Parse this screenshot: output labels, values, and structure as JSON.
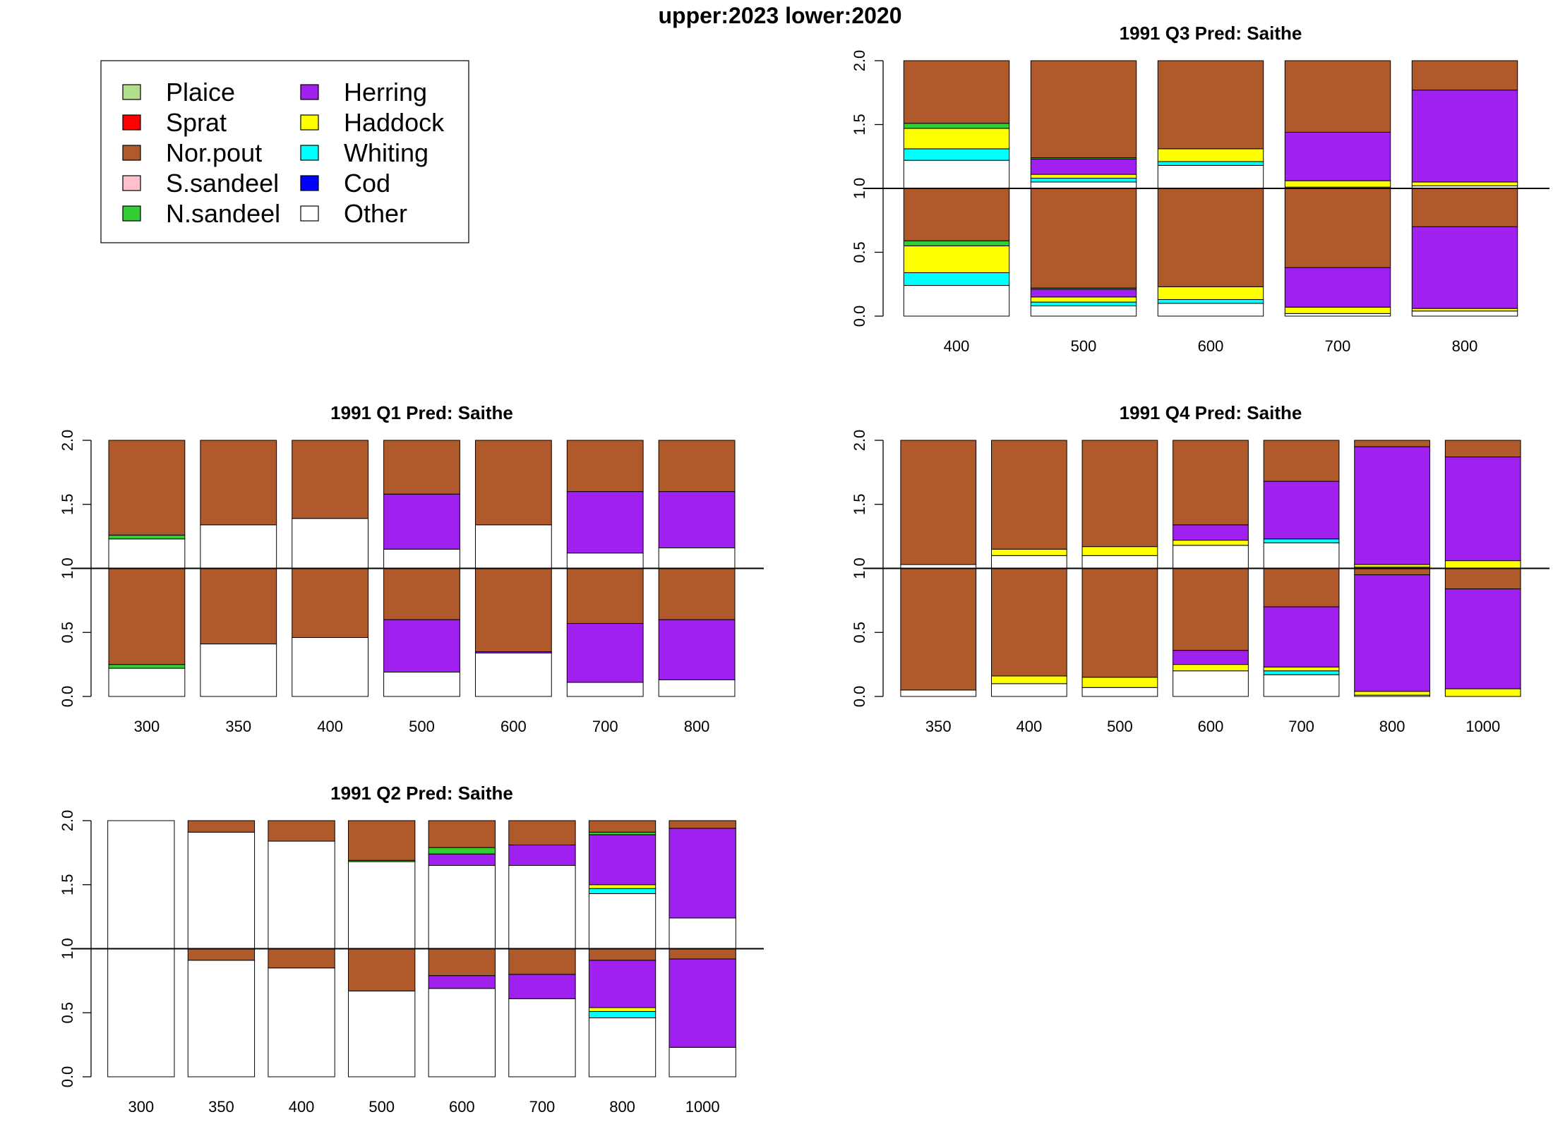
{
  "main_title": "upper:2023  lower:2020",
  "legend": {
    "placement": "top-left",
    "items": [
      {
        "label": "Plaice",
        "color": "#b2df8a"
      },
      {
        "label": "Sprat",
        "color": "#ff0000"
      },
      {
        "label": "Nor.pout",
        "color": "#b05a2c"
      },
      {
        "label": "S.sandeel",
        "color": "#ffc0cb"
      },
      {
        "label": "N.sandeel",
        "color": "#32cd32"
      },
      {
        "label": "Herring",
        "color": "#a020f0"
      },
      {
        "label": "Haddock",
        "color": "#ffff00"
      },
      {
        "label": "Whiting",
        "color": "#00ffff"
      },
      {
        "label": "Cod",
        "color": "#0000ff"
      },
      {
        "label": "Other",
        "color": "#ffffff"
      }
    ]
  },
  "chart_data": [
    {
      "type": "bar",
      "title": "1991 Q3  Pred: Saithe",
      "ylim": [
        0,
        2
      ],
      "yticks": [
        "0.0",
        "0.5",
        "1.0",
        "1.5",
        "2.0"
      ],
      "categories": [
        "400",
        "500",
        "600",
        "700",
        "800"
      ],
      "upper": [
        {
          "Other": 0.22,
          "Whiting": 0.09,
          "Haddock": 0.16,
          "N.sandeel": 0.04,
          "Nor.pout": 0.49
        },
        {
          "Other": 0.05,
          "Whiting": 0.03,
          "Haddock": 0.03,
          "N.sandeel": 0.01,
          "Herring": 0.12,
          "Nor.pout": 0.76
        },
        {
          "Other": 0.18,
          "Whiting": 0.03,
          "Haddock": 0.1,
          "Nor.pout": 0.69
        },
        {
          "Other": 0.01,
          "Haddock": 0.05,
          "Herring": 0.38,
          "Nor.pout": 0.56
        },
        {
          "Other": 0.02,
          "Haddock": 0.03,
          "Herring": 0.72,
          "Nor.pout": 0.23
        }
      ],
      "lower": [
        {
          "Other": 0.24,
          "Whiting": 0.1,
          "Haddock": 0.21,
          "N.sandeel": 0.04,
          "Nor.pout": 0.41
        },
        {
          "Other": 0.08,
          "Whiting": 0.03,
          "Haddock": 0.04,
          "N.sandeel": 0.01,
          "Herring": 0.06,
          "Nor.pout": 0.78
        },
        {
          "Other": 0.1,
          "Whiting": 0.03,
          "Haddock": 0.1,
          "Nor.pout": 0.77
        },
        {
          "Other": 0.02,
          "Haddock": 0.05,
          "Herring": 0.31,
          "Nor.pout": 0.62
        },
        {
          "Other": 0.04,
          "Haddock": 0.02,
          "Herring": 0.64,
          "Nor.pout": 0.3
        }
      ]
    },
    {
      "type": "bar",
      "title": "1991 Q1  Pred: Saithe",
      "ylim": [
        0,
        2
      ],
      "yticks": [
        "0.0",
        "0.5",
        "1.0",
        "1.5",
        "2.0"
      ],
      "categories": [
        "300",
        "350",
        "400",
        "500",
        "600",
        "700",
        "800"
      ],
      "upper": [
        {
          "Other": 0.23,
          "N.sandeel": 0.03,
          "Nor.pout": 0.74
        },
        {
          "Other": 0.34,
          "Nor.pout": 0.66
        },
        {
          "Other": 0.39,
          "Nor.pout": 0.61
        },
        {
          "Other": 0.15,
          "Herring": 0.43,
          "Nor.pout": 0.42
        },
        {
          "Other": 0.34,
          "Nor.pout": 0.66
        },
        {
          "Other": 0.12,
          "Herring": 0.48,
          "Nor.pout": 0.4
        },
        {
          "Other": 0.16,
          "Herring": 0.44,
          "Nor.pout": 0.4
        }
      ],
      "lower": [
        {
          "Other": 0.22,
          "N.sandeel": 0.03,
          "Nor.pout": 0.75
        },
        {
          "Other": 0.41,
          "Nor.pout": 0.59
        },
        {
          "Other": 0.46,
          "Nor.pout": 0.54
        },
        {
          "Other": 0.19,
          "Herring": 0.41,
          "Nor.pout": 0.4
        },
        {
          "Other": 0.34,
          "Herring": 0.01,
          "Nor.pout": 0.65
        },
        {
          "Other": 0.11,
          "Herring": 0.46,
          "Nor.pout": 0.43
        },
        {
          "Other": 0.13,
          "Herring": 0.47,
          "Nor.pout": 0.4
        }
      ]
    },
    {
      "type": "bar",
      "title": "1991 Q4  Pred: Saithe",
      "ylim": [
        0,
        2
      ],
      "yticks": [
        "0.0",
        "0.5",
        "1.0",
        "1.5",
        "2.0"
      ],
      "categories": [
        "350",
        "400",
        "500",
        "600",
        "700",
        "800",
        "1000"
      ],
      "upper": [
        {
          "Other": 0.03,
          "Nor.pout": 0.97
        },
        {
          "Other": 0.1,
          "Haddock": 0.05,
          "Nor.pout": 0.85
        },
        {
          "Other": 0.1,
          "Haddock": 0.07,
          "Nor.pout": 0.83
        },
        {
          "Other": 0.18,
          "Haddock": 0.04,
          "Herring": 0.12,
          "Nor.pout": 0.66
        },
        {
          "Other": 0.2,
          "Whiting": 0.03,
          "Herring": 0.45,
          "Nor.pout": 0.32
        },
        {
          "Other": 0.01,
          "Haddock": 0.02,
          "Herring": 0.92,
          "Nor.pout": 0.05
        },
        {
          "Haddock": 0.06,
          "Herring": 0.81,
          "Nor.pout": 0.13
        }
      ],
      "lower": [
        {
          "Other": 0.05,
          "Nor.pout": 0.95
        },
        {
          "Other": 0.1,
          "Haddock": 0.06,
          "Nor.pout": 0.84
        },
        {
          "Other": 0.07,
          "Haddock": 0.08,
          "Nor.pout": 0.85
        },
        {
          "Other": 0.2,
          "Haddock": 0.05,
          "Herring": 0.11,
          "Nor.pout": 0.64
        },
        {
          "Other": 0.17,
          "Whiting": 0.03,
          "Haddock": 0.03,
          "Herring": 0.47,
          "Nor.pout": 0.3
        },
        {
          "Other": 0.01,
          "Haddock": 0.03,
          "Herring": 0.91,
          "Nor.pout": 0.05
        },
        {
          "Haddock": 0.06,
          "Herring": 0.78,
          "Nor.pout": 0.16
        }
      ]
    },
    {
      "type": "bar",
      "title": "1991 Q2  Pred: Saithe",
      "ylim": [
        0,
        2
      ],
      "yticks": [
        "0.0",
        "0.5",
        "1.0",
        "1.5",
        "2.0"
      ],
      "categories": [
        "300",
        "350",
        "400",
        "500",
        "600",
        "700",
        "800",
        "1000"
      ],
      "upper": [
        {
          "Other": 1.0
        },
        {
          "Other": 0.91,
          "Nor.pout": 0.09
        },
        {
          "Other": 0.84,
          "Nor.pout": 0.16
        },
        {
          "Other": 0.68,
          "N.sandeel": 0.01,
          "Nor.pout": 0.31
        },
        {
          "Other": 0.65,
          "Herring": 0.09,
          "N.sandeel": 0.05,
          "Nor.pout": 0.21
        },
        {
          "Other": 0.65,
          "Herring": 0.16,
          "Nor.pout": 0.19
        },
        {
          "Other": 0.43,
          "Whiting": 0.04,
          "Haddock": 0.03,
          "Herring": 0.39,
          "N.sandeel": 0.02,
          "Nor.pout": 0.09
        },
        {
          "Other": 0.24,
          "Herring": 0.7,
          "Nor.pout": 0.06
        }
      ],
      "lower": [
        {
          "Other": 1.0
        },
        {
          "Other": 0.91,
          "Nor.pout": 0.09
        },
        {
          "Other": 0.85,
          "Nor.pout": 0.15
        },
        {
          "Other": 0.67,
          "Nor.pout": 0.33
        },
        {
          "Other": 0.69,
          "Herring": 0.1,
          "Nor.pout": 0.21
        },
        {
          "Other": 0.61,
          "Herring": 0.19,
          "Nor.pout": 0.2
        },
        {
          "Other": 0.46,
          "Whiting": 0.05,
          "Haddock": 0.03,
          "Herring": 0.37,
          "Nor.pout": 0.09
        },
        {
          "Other": 0.23,
          "Herring": 0.69,
          "Nor.pout": 0.08
        }
      ]
    }
  ]
}
